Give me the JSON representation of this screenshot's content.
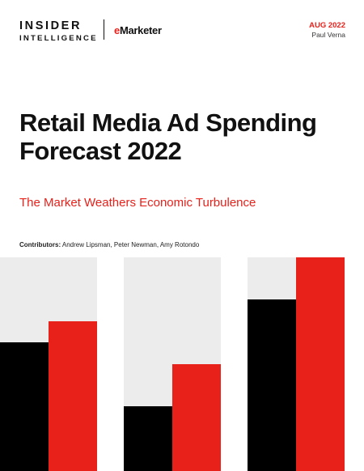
{
  "header": {
    "brand_line1": "INSIDER",
    "brand_line2": "INTELLIGENCE",
    "brand_emarketer_e": "e",
    "brand_emarketer_rest": "Marketer",
    "date": "AUG 2022",
    "author": "Paul Verna"
  },
  "title": {
    "line1": "Retail Media Ad Spending",
    "line2": "Forecast 2022"
  },
  "subtitle": "The Market Weathers Economic Turbulence",
  "contributors": {
    "label": "Contributors:",
    "names": "Andrew Lipsman, Peter Newman, Amy Rotondo"
  },
  "colors": {
    "accent_red": "#e8211b",
    "black": "#000000",
    "background_gray": "#ececec"
  }
}
